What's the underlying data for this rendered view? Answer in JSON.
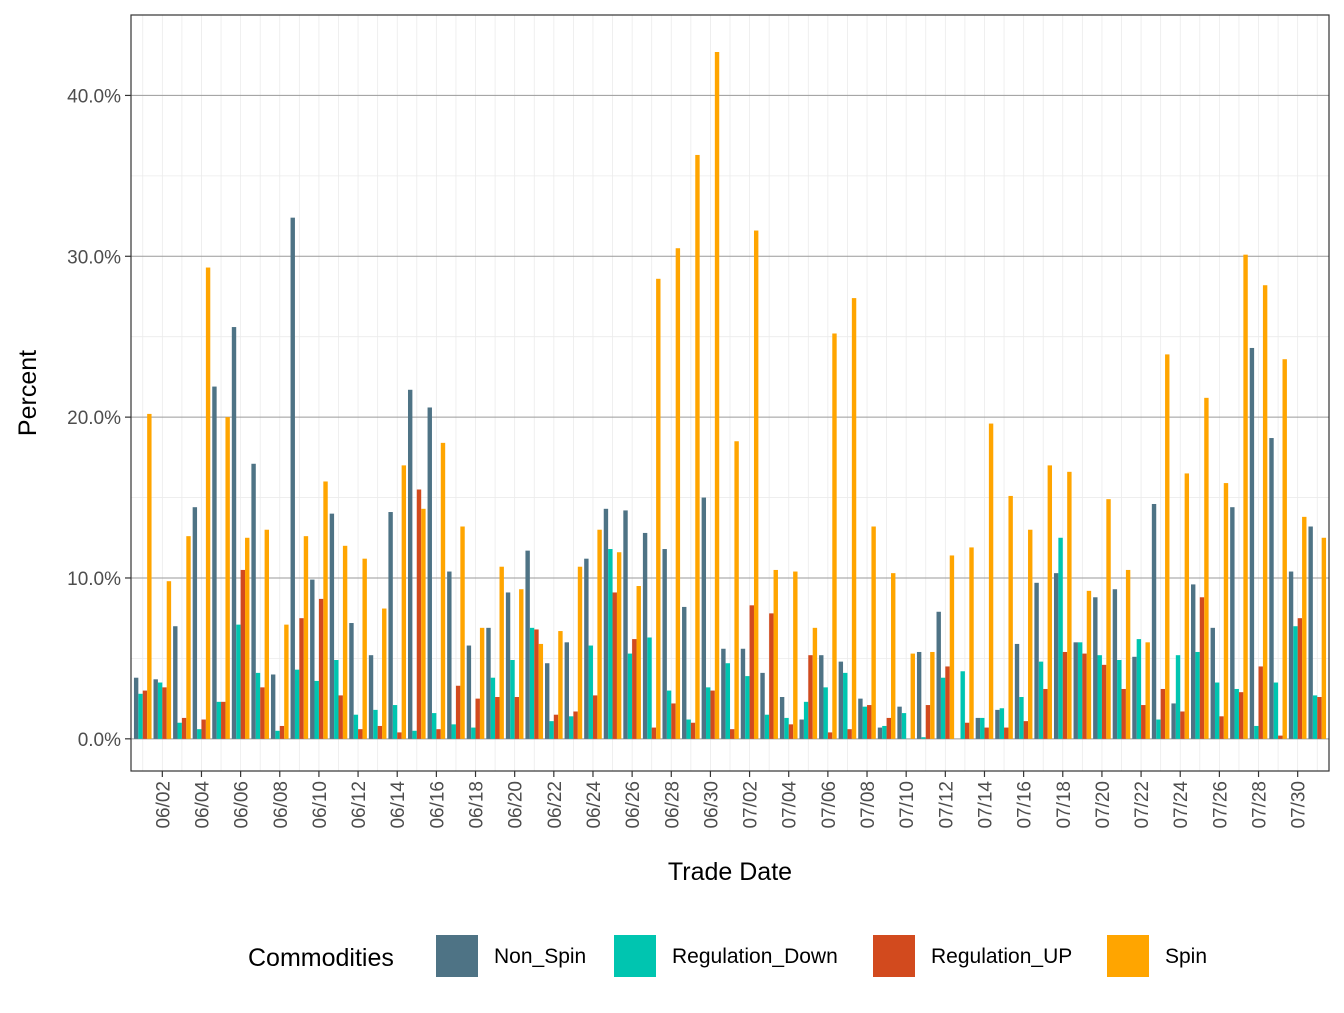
{
  "chart_data": {
    "type": "bar",
    "xlabel": "Trade Date",
    "ylabel": "Percent",
    "ylim": [
      -2.0,
      45.0
    ],
    "yticks": [
      0,
      10,
      20,
      30,
      40
    ],
    "ytick_labels": [
      "0.0%",
      "10.0%",
      "20.0%",
      "30.0%",
      "40.0%"
    ],
    "grid": true,
    "legend": {
      "title": "Commodities",
      "position": "bottom"
    },
    "categories": [
      "06/01",
      "06/02",
      "06/03",
      "06/04",
      "06/05",
      "06/06",
      "06/07",
      "06/08",
      "06/09",
      "06/10",
      "06/11",
      "06/12",
      "06/13",
      "06/14",
      "06/15",
      "06/16",
      "06/17",
      "06/18",
      "06/19",
      "06/20",
      "06/21",
      "06/22",
      "06/23",
      "06/24",
      "06/25",
      "06/26",
      "06/27",
      "06/28",
      "06/29",
      "06/30",
      "07/01",
      "07/02",
      "07/03",
      "07/04",
      "07/05",
      "07/06",
      "07/07",
      "07/08",
      "07/09",
      "07/10",
      "07/11",
      "07/12",
      "07/13",
      "07/14",
      "07/15",
      "07/16",
      "07/17",
      "07/18",
      "07/19",
      "07/20",
      "07/21",
      "07/22",
      "07/23",
      "07/24",
      "07/25",
      "07/26",
      "07/27",
      "07/28",
      "07/29",
      "07/30",
      "07/31"
    ],
    "xtick_labels": [
      "06/02",
      "06/04",
      "06/06",
      "06/08",
      "06/10",
      "06/12",
      "06/14",
      "06/16",
      "06/18",
      "06/20",
      "06/22",
      "06/24",
      "06/26",
      "06/28",
      "06/30",
      "07/02",
      "07/04",
      "07/06",
      "07/08",
      "07/10",
      "07/12",
      "07/14",
      "07/16",
      "07/18",
      "07/20",
      "07/22",
      "07/24",
      "07/26",
      "07/28",
      "07/30"
    ],
    "series": [
      {
        "name": "Non_Spin",
        "color": "#4e7385",
        "values": [
          3.8,
          3.7,
          7.0,
          14.4,
          21.9,
          25.6,
          17.1,
          4.0,
          32.4,
          9.9,
          14.0,
          7.2,
          5.2,
          14.1,
          21.7,
          20.6,
          10.4,
          5.8,
          6.9,
          9.1,
          11.7,
          4.7,
          6.0,
          11.2,
          14.3,
          14.2,
          12.8,
          11.8,
          8.2,
          15.0,
          5.6,
          5.6,
          4.1,
          2.6,
          1.2,
          5.2,
          4.8,
          2.5,
          0.7,
          2.0,
          5.4,
          7.9,
          0.0,
          1.3,
          1.8,
          5.9,
          9.7,
          10.3,
          6.0,
          8.8,
          9.3,
          5.1,
          14.6,
          2.2,
          9.6,
          6.9,
          14.4,
          24.3,
          18.7,
          10.4,
          13.2
        ]
      },
      {
        "name": "Regulation_Down",
        "color": "#00c5b0",
        "values": [
          2.8,
          3.5,
          1.0,
          0.6,
          2.3,
          7.1,
          4.1,
          0.5,
          4.3,
          3.6,
          4.9,
          1.5,
          1.8,
          2.1,
          0.5,
          1.6,
          0.9,
          0.7,
          3.8,
          4.9,
          6.9,
          1.1,
          1.4,
          5.8,
          11.8,
          5.3,
          6.3,
          3.0,
          1.2,
          3.2,
          4.7,
          3.9,
          1.5,
          1.3,
          2.3,
          3.2,
          4.1,
          2.0,
          0.8,
          1.6,
          0.1,
          3.8,
          4.2,
          1.3,
          1.9,
          2.6,
          4.8,
          12.5,
          6.0,
          5.2,
          4.9,
          6.2,
          1.2,
          5.2,
          5.4,
          3.5,
          3.1,
          0.8,
          3.5,
          7.0,
          2.7
        ]
      },
      {
        "name": "Regulation_UP",
        "color": "#d24a1e",
        "values": [
          3.0,
          3.2,
          1.3,
          1.2,
          2.3,
          10.5,
          3.2,
          0.8,
          7.5,
          8.7,
          2.7,
          0.6,
          0.8,
          0.4,
          15.5,
          0.6,
          3.3,
          2.5,
          2.6,
          2.6,
          6.8,
          1.5,
          1.7,
          2.7,
          9.1,
          6.2,
          0.7,
          2.2,
          1.0,
          3.0,
          0.6,
          8.3,
          7.8,
          0.9,
          5.2,
          0.4,
          0.6,
          2.1,
          1.3,
          0.0,
          2.1,
          4.5,
          1.0,
          0.7,
          0.7,
          1.1,
          3.1,
          5.4,
          5.3,
          4.6,
          3.1,
          2.1,
          3.1,
          1.7,
          8.8,
          1.4,
          2.9,
          4.5,
          0.2,
          7.5,
          2.6
        ]
      },
      {
        "name": "Spin",
        "color": "#ffa500",
        "values": [
          20.2,
          9.8,
          12.6,
          29.3,
          20.0,
          12.5,
          13.0,
          7.1,
          12.6,
          16.0,
          12.0,
          11.2,
          8.1,
          17.0,
          14.3,
          18.4,
          13.2,
          6.9,
          10.7,
          9.3,
          5.9,
          6.7,
          10.7,
          13.0,
          11.6,
          9.5,
          28.6,
          30.5,
          36.3,
          42.7,
          18.5,
          31.6,
          10.5,
          10.4,
          6.9,
          25.2,
          27.4,
          13.2,
          10.3,
          5.3,
          5.4,
          11.4,
          11.9,
          19.6,
          15.1,
          13.0,
          17.0,
          16.6,
          9.2,
          14.9,
          10.5,
          6.0,
          23.9,
          16.5,
          21.2,
          15.9,
          30.1,
          28.2,
          23.6,
          13.8,
          12.5
        ]
      }
    ]
  }
}
